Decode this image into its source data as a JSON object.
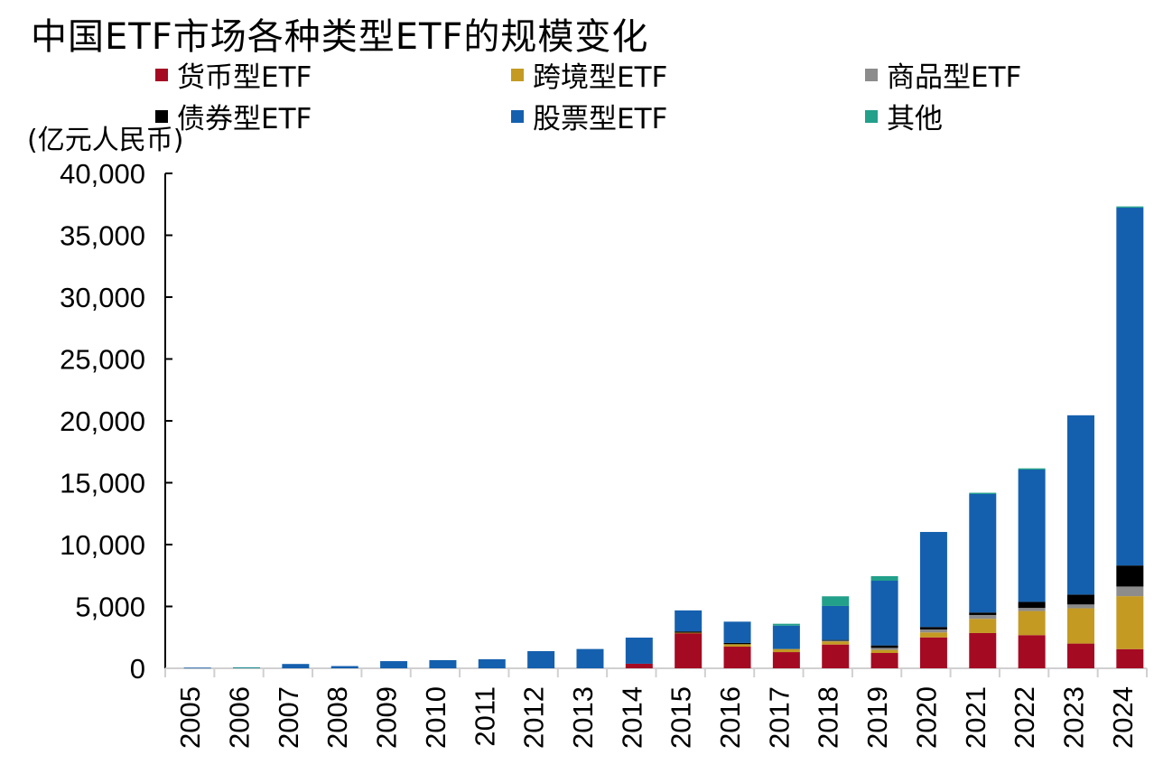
{
  "chart_data": {
    "type": "bar",
    "stacked": true,
    "title": "中国ETF市场各种类型ETF的规模变化",
    "ylabel": "(亿元人民币)",
    "ylim": [
      0,
      40000
    ],
    "yticks": [
      0,
      5000,
      10000,
      15000,
      20000,
      25000,
      30000,
      35000,
      40000
    ],
    "ytick_labels": [
      "0",
      "5,000",
      "10,000",
      "15,000",
      "20,000",
      "25,000",
      "30,000",
      "35,000",
      "40,000"
    ],
    "grid": false,
    "legend_position": "top",
    "categories": [
      "2005",
      "2006",
      "2007",
      "2008",
      "2009",
      "2010",
      "2011",
      "2012",
      "2013",
      "2014",
      "2015",
      "2016",
      "2017",
      "2018",
      "2019",
      "2020",
      "2021",
      "2022",
      "2023",
      "2024"
    ],
    "series": [
      {
        "name": "货币型ETF",
        "color": "#A50A23",
        "values": [
          0,
          0,
          0,
          0,
          0,
          0,
          0,
          0,
          0,
          370,
          2850,
          1750,
          1310,
          1920,
          1240,
          2500,
          2850,
          2680,
          2000,
          1550
        ]
      },
      {
        "name": "跨境型ETF",
        "color": "#C49A22",
        "values": [
          0,
          0,
          0,
          0,
          0,
          0,
          0,
          0,
          0,
          0,
          30,
          200,
          250,
          250,
          250,
          400,
          1150,
          1950,
          2850,
          4280
        ]
      },
      {
        "name": "商品型ETF",
        "color": "#8C8C8C",
        "values": [
          0,
          0,
          0,
          0,
          0,
          0,
          0,
          0,
          0,
          0,
          0,
          0,
          0,
          60,
          160,
          240,
          310,
          250,
          310,
          780
        ]
      },
      {
        "name": "债券型ETF",
        "color": "#000000",
        "values": [
          0,
          0,
          0,
          0,
          0,
          0,
          0,
          0,
          0,
          0,
          100,
          100,
          0,
          60,
          200,
          200,
          200,
          490,
          800,
          1700
        ]
      },
      {
        "name": "股票型ETF",
        "color": "#1560AE",
        "values": [
          50,
          60,
          350,
          180,
          580,
          660,
          730,
          1390,
          1560,
          2110,
          1700,
          1720,
          1890,
          2750,
          5230,
          7680,
          9580,
          10690,
          14490,
          28920
        ]
      },
      {
        "name": "其他",
        "color": "#22A08A",
        "values": [
          0,
          20,
          0,
          0,
          0,
          0,
          0,
          0,
          0,
          0,
          0,
          0,
          150,
          780,
          370,
          0,
          100,
          100,
          0,
          100
        ]
      }
    ]
  }
}
